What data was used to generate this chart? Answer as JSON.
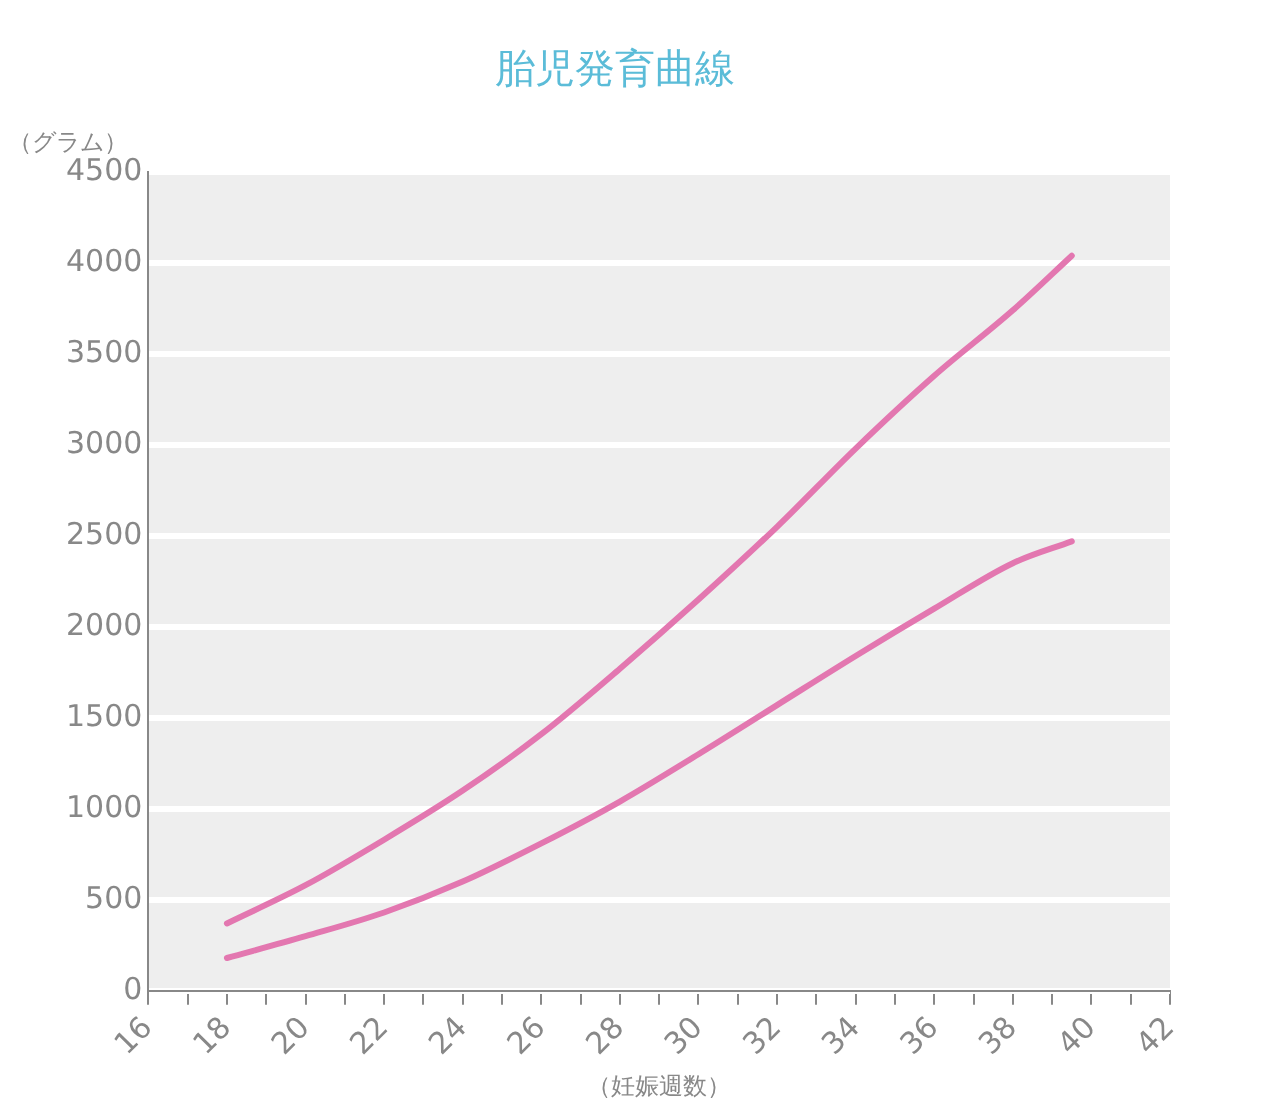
{
  "chart_data": {
    "type": "line",
    "title": "胎児発育曲線",
    "xlabel": "（妊娠週数）",
    "ylabel": "（グラム）",
    "series": [
      {
        "color": "#e377b0",
        "x": [
          18,
          20,
          22,
          24,
          26,
          28,
          30,
          32,
          34,
          36,
          38,
          39.5
        ],
        "values": [
          370,
          580,
          830,
          1100,
          1410,
          1770,
          2150,
          2550,
          2980,
          3380,
          3740,
          4040
        ]
      },
      {
        "color": "#e377b0",
        "x": [
          18,
          20,
          22,
          24,
          26,
          28,
          30,
          32,
          34,
          36,
          38,
          39.5
        ],
        "values": [
          180,
          300,
          430,
          600,
          810,
          1040,
          1300,
          1570,
          1840,
          2100,
          2350,
          2470
        ]
      }
    ],
    "xlim": [
      16,
      42
    ],
    "xticks": [
      16,
      {
        "value": 17,
        "label": null
      },
      18,
      {
        "value": 19,
        "label": null
      },
      20,
      {
        "value": 21,
        "label": null
      },
      22,
      {
        "value": 23,
        "label": null
      },
      24,
      {
        "value": 25,
        "label": null
      },
      26,
      {
        "value": 27,
        "label": null
      },
      28,
      {
        "value": 29,
        "label": null
      },
      30,
      {
        "value": 31,
        "label": null
      },
      32,
      {
        "value": 33,
        "label": null
      },
      34,
      {
        "value": 35,
        "label": null
      },
      36,
      {
        "value": 37,
        "label": null
      },
      38,
      {
        "value": 39,
        "label": null
      },
      40,
      {
        "value": 41,
        "label": null
      },
      42
    ],
    "ylim": [
      0,
      4500
    ],
    "yticks": [
      0,
      500,
      1000,
      1500,
      2000,
      2500,
      3000,
      3500,
      4000,
      4500
    ],
    "grid": "y",
    "legend": false,
    "marker": "none",
    "line_style": "solid"
  }
}
